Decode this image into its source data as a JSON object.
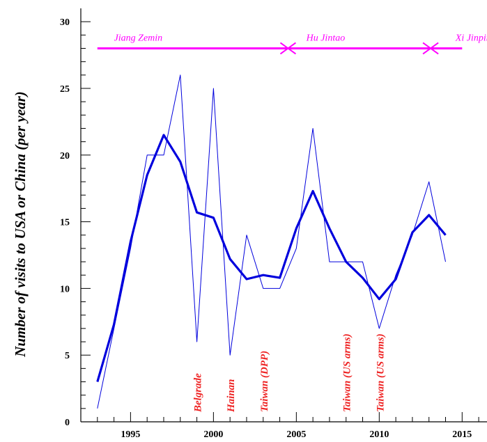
{
  "chart_data": {
    "type": "line",
    "ylabel": "Number of visits to USA or China (per year)",
    "xlabel": "",
    "title": "",
    "xlim": [
      1992,
      2016.5
    ],
    "ylim": [
      0,
      31
    ],
    "x_ticks": [
      1995,
      2000,
      2005,
      2010,
      2015
    ],
    "y_ticks": [
      0,
      5,
      10,
      15,
      20,
      25,
      30
    ],
    "grid": false,
    "series": [
      {
        "style": "thin",
        "color": "#0000dd",
        "x": [
          1993,
          1994,
          1995,
          1996,
          1997,
          1998,
          1999,
          2000,
          2001,
          2002,
          2003,
          2004,
          2005,
          2006,
          2007,
          2008,
          2009,
          2010,
          2011,
          2012,
          2013,
          2014
        ],
        "y": [
          1,
          7,
          13,
          20,
          20,
          26,
          6,
          25,
          5,
          14,
          10,
          10,
          13,
          22,
          12,
          12,
          12,
          7,
          11,
          14,
          18,
          12
        ]
      },
      {
        "style": "smoothed",
        "color": "#0000dd",
        "x": [
          1993,
          1994,
          1995,
          1996,
          1997,
          1998,
          1999,
          2000,
          2001,
          2002,
          2003,
          2004,
          2005,
          2006,
          2007,
          2008,
          2009,
          2010,
          2011,
          2012,
          2013,
          2014
        ],
        "y": [
          3,
          7.3,
          13.5,
          18.5,
          21.5,
          19.5,
          15.7,
          15.3,
          12.2,
          10.7,
          11,
          10.8,
          14.5,
          17.3,
          14.5,
          12,
          10.8,
          9.2,
          10.7,
          14.2,
          15.5,
          14
        ]
      }
    ],
    "eras": {
      "y": 28,
      "color": "#ff00ff",
      "line_x": [
        1993,
        2015
      ],
      "markers_x": [
        2004.5,
        2013.1
      ],
      "labels": [
        {
          "text": "Jiang Zemin",
          "x": 1994
        },
        {
          "text": "Hu Jintao",
          "x": 2005.6
        },
        {
          "text": "Xi Jinping",
          "x": 2014.6
        }
      ]
    },
    "annotations": {
      "color": "#ee2222",
      "items": [
        {
          "text": "Belgrade",
          "x": 1999
        },
        {
          "text": "Hainan",
          "x": 2001
        },
        {
          "text": "Taiwan (DPP)",
          "x": 2003
        },
        {
          "text": "Taiwan (US arms)",
          "x": 2008
        },
        {
          "text": "Taiwan (US arms)",
          "x": 2010
        }
      ]
    }
  }
}
